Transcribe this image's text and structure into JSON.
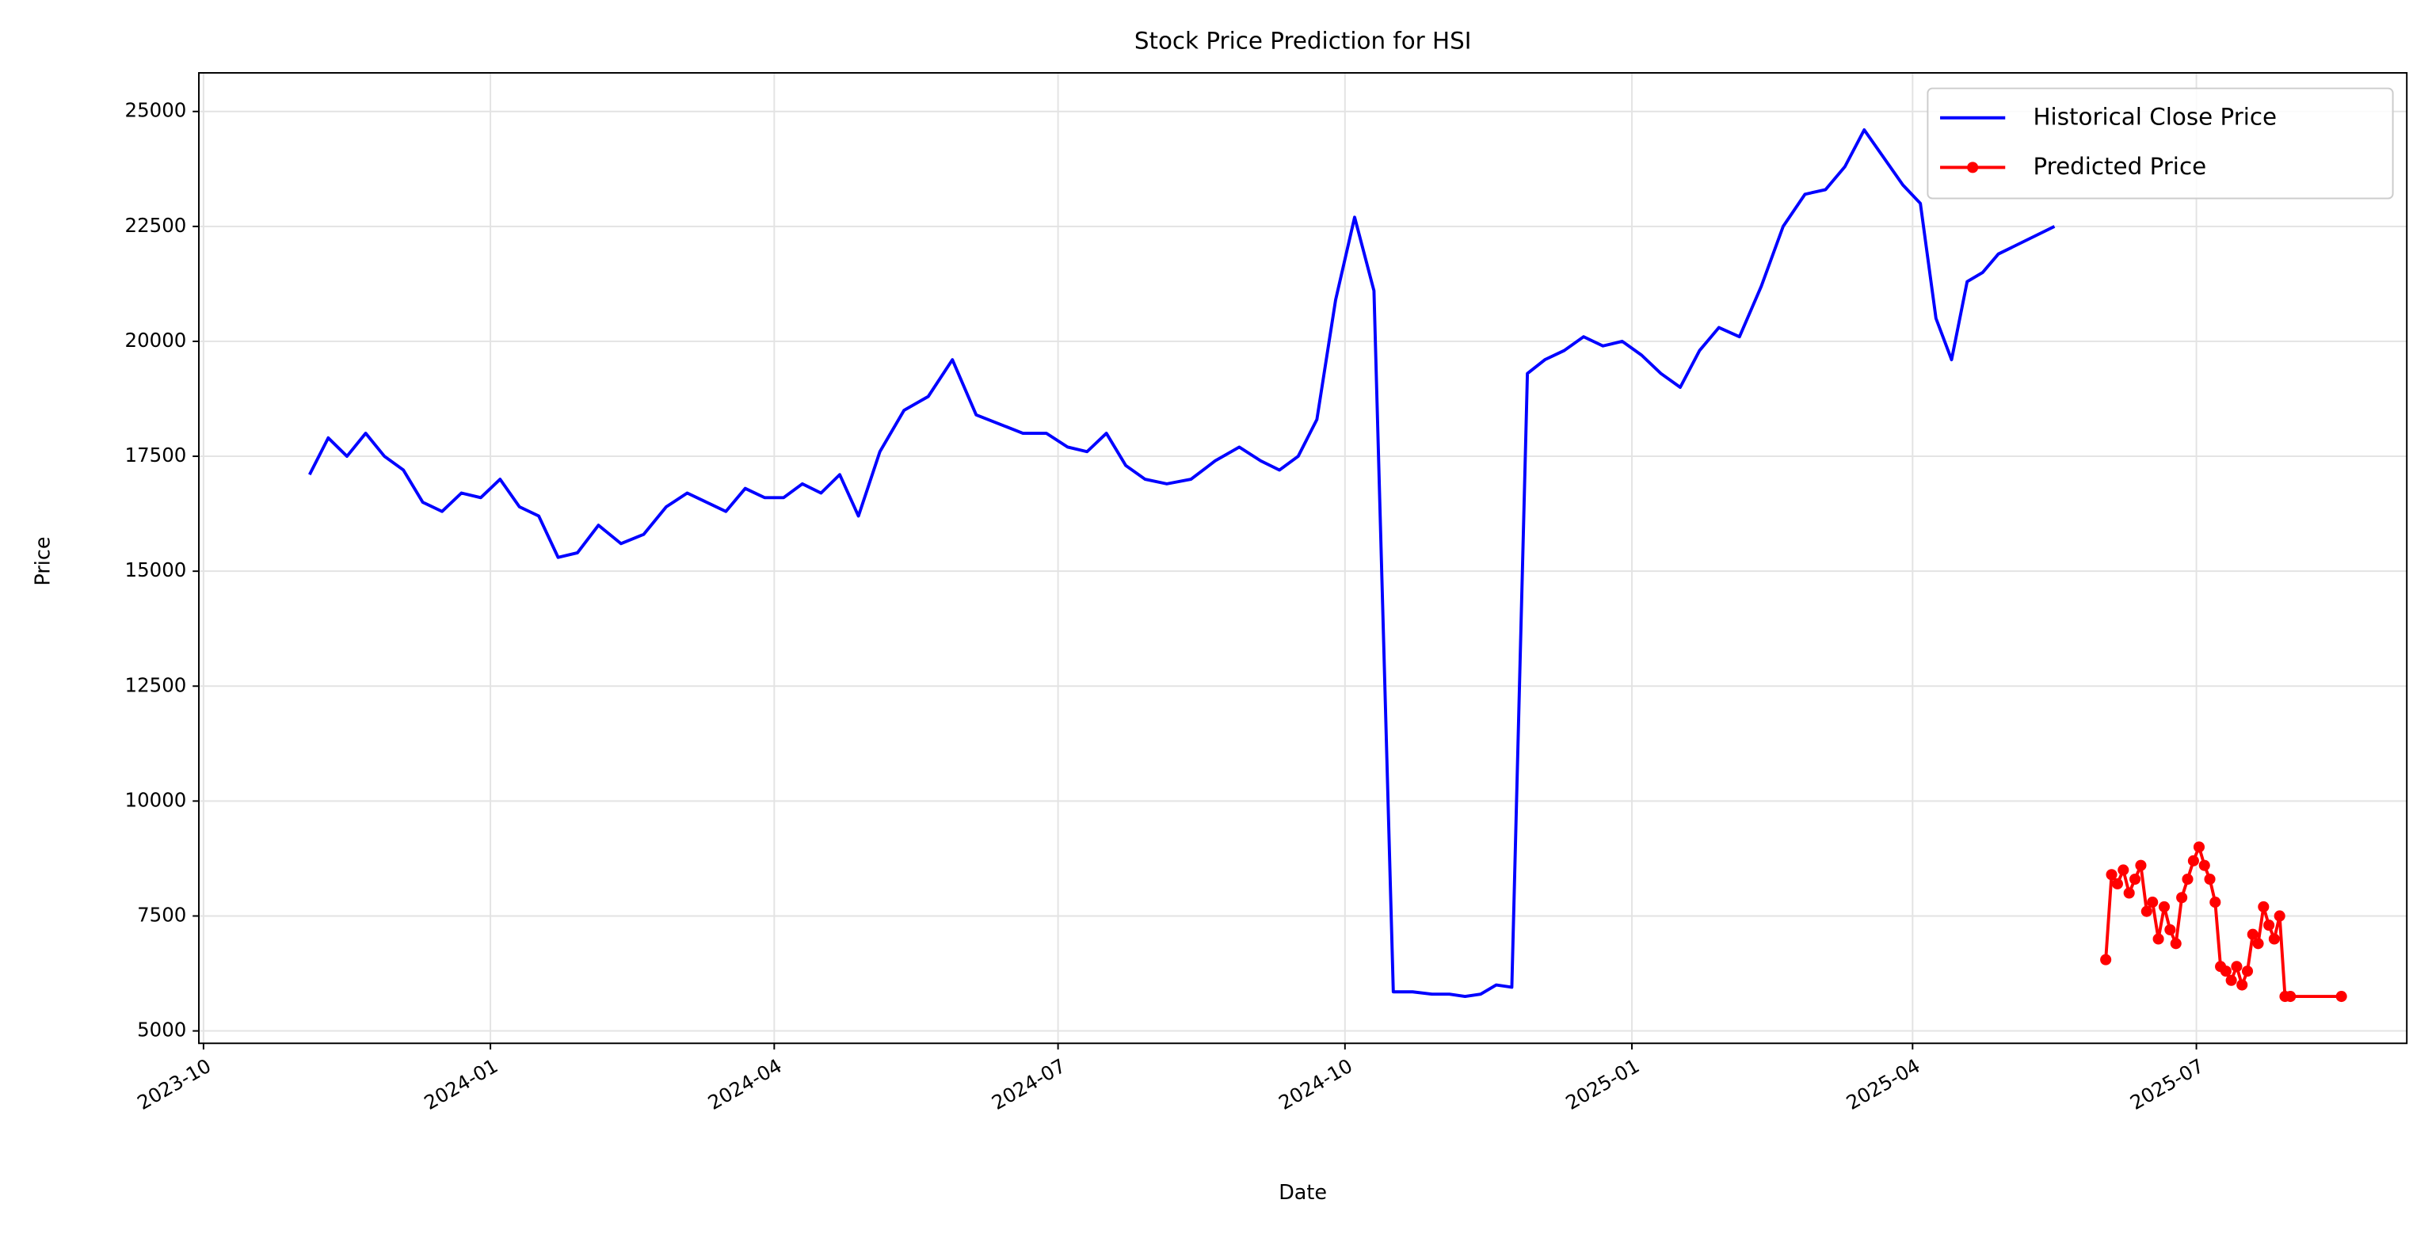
{
  "chart_data": {
    "type": "line",
    "title": "Stock Price Prediction for HSI",
    "x_label": "Date",
    "y_label": "Price",
    "xlim": [
      "2023-10",
      "2025-09"
    ],
    "xticks": [
      "2023-10",
      "2024-01",
      "2024-04",
      "2024-07",
      "2024-10",
      "2025-01",
      "2025-04",
      "2025-07"
    ],
    "ylim": [
      4730,
      25840
    ],
    "yticks": [
      5000,
      7500,
      10000,
      12500,
      15000,
      17500,
      20000,
      22500,
      25000
    ],
    "grid": true,
    "legend": "upper right",
    "series": [
      {
        "name": "Historical Close Price",
        "color": "#0000ff",
        "x": [
          "2023-11",
          "2023-11",
          "2023-11",
          "2023-11",
          "2023-11",
          "2023-12",
          "2023-12",
          "2023-12",
          "2023-12",
          "2023-12",
          "2024-01",
          "2024-01",
          "2024-01",
          "2024-01",
          "2024-01",
          "2024-02",
          "2024-02",
          "2024-02",
          "2024-02",
          "2024-03",
          "2024-03",
          "2024-03",
          "2024-03",
          "2024-03",
          "2024-04",
          "2024-04",
          "2024-04",
          "2024-04",
          "2024-04",
          "2024-05",
          "2024-05",
          "2024-05",
          "2024-05",
          "2024-06",
          "2024-06",
          "2024-06",
          "2024-06",
          "2024-07",
          "2024-07",
          "2024-07",
          "2024-07",
          "2024-07",
          "2024-08",
          "2024-08",
          "2024-08",
          "2024-08",
          "2024-09",
          "2024-09",
          "2024-09",
          "2024-09",
          "2024-09",
          "2024-10",
          "2024-10",
          "2024-10",
          "2024-10",
          "2024-10",
          "2024-11",
          "2024-11",
          "2024-11",
          "2024-11",
          "2024-11",
          "2024-11",
          "2024-12",
          "2024-12",
          "2024-12",
          "2024-12",
          "2024-12",
          "2025-01",
          "2025-01",
          "2025-01",
          "2025-01",
          "2025-01",
          "2025-02",
          "2025-02",
          "2025-02",
          "2025-02",
          "2025-03",
          "2025-03",
          "2025-03",
          "2025-03",
          "2025-03",
          "2025-04",
          "2025-04",
          "2025-04",
          "2025-04",
          "2025-04",
          "2025-04",
          "2025-05"
        ],
        "values": [
          17100,
          17900,
          17500,
          18000,
          17500,
          17200,
          16500,
          16300,
          16700,
          16600,
          17000,
          16400,
          16200,
          15300,
          15400,
          16000,
          15600,
          15800,
          16400,
          16700,
          16500,
          16300,
          16800,
          16600,
          16600,
          16900,
          16700,
          17100,
          16200,
          17600,
          18500,
          18800,
          19600,
          18400,
          18200,
          18000,
          18000,
          17700,
          17600,
          18000,
          17300,
          17000,
          16900,
          17000,
          17400,
          17700,
          17400,
          17200,
          17500,
          18300,
          20900,
          22700,
          21100,
          5850,
          5850,
          5800,
          5800,
          5750,
          5800,
          6000,
          5950,
          19300,
          19600,
          19800,
          20100,
          19900,
          20000,
          19700,
          19300,
          19000,
          19800,
          20300,
          20100,
          21200,
          22500,
          23200,
          23300,
          23800,
          24600,
          24000,
          23400,
          23000,
          20500,
          19600,
          21300,
          21500,
          21900,
          22500
        ]
      },
      {
        "name": "Predicted Price",
        "color": "#ff0000",
        "marker": "o",
        "x": [
          "2025-06",
          "2025-06",
          "2025-06",
          "2025-06",
          "2025-06",
          "2025-06",
          "2025-06",
          "2025-06",
          "2025-06",
          "2025-06",
          "2025-06",
          "2025-06",
          "2025-06",
          "2025-06",
          "2025-06",
          "2025-06",
          "2025-07",
          "2025-07",
          "2025-07",
          "2025-07",
          "2025-07",
          "2025-07",
          "2025-07",
          "2025-07",
          "2025-07",
          "2025-07",
          "2025-07",
          "2025-07",
          "2025-07",
          "2025-07",
          "2025-07",
          "2025-07",
          "2025-07",
          "2025-07",
          "2025-08"
        ],
        "values": [
          6550,
          8400,
          8200,
          8500,
          8000,
          8300,
          8600,
          7600,
          7800,
          7000,
          7700,
          7200,
          6900,
          7900,
          8300,
          8700,
          9000,
          8600,
          8300,
          7800,
          6400,
          6300,
          6100,
          6400,
          6000,
          6300,
          7100,
          6900,
          7700,
          7300,
          7000,
          7500,
          5750,
          5750,
          5750
        ]
      }
    ]
  }
}
